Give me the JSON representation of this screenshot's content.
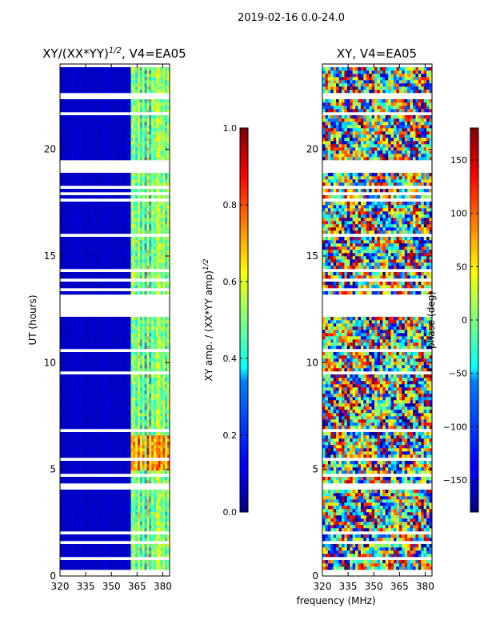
{
  "figure": {
    "suptitle": "2019-02-16 0.0-24.0",
    "shared_xlabel": "frequency (MHz)"
  },
  "chart_data": [
    {
      "type": "heatmap",
      "title": "XY/(XX*YY)^{1/2}, V4=EA05",
      "title_main": "XY/(XX*YY)",
      "title_sup": "1/2",
      "title_tail": ", V4=EA05",
      "xlabel": "frequency (MHz)",
      "ylabel": "UT (hours)",
      "xlim": [
        320,
        384
      ],
      "ylim": [
        0,
        24
      ],
      "xticks": [
        320,
        335,
        350,
        365,
        380
      ],
      "yticks": [
        0,
        5,
        10,
        15,
        20
      ],
      "colormap": "jet",
      "colorbar": {
        "label": "XY amp. / (XX*YY amp)^{1/2}",
        "label_main": "XY amp. / (XX*YY amp)",
        "label_sup": "1/2",
        "range": [
          0.0,
          1.0
        ],
        "ticks": [
          "0.0",
          "0.2",
          "0.4",
          "0.6",
          "0.8",
          "1.0"
        ]
      },
      "flagged_gaps_hours": [
        [
          12.2,
          13.2
        ],
        [
          18.9,
          19.4
        ]
      ],
      "description_values": "mostly ~0.05 below 361 MHz; ~0.3-0.6 in columns 361-380 MHz"
    },
    {
      "type": "heatmap",
      "title": "XY, V4=EA05",
      "xlabel": "frequency (MHz)",
      "ylabel": "",
      "xlim": [
        320,
        384
      ],
      "ylim": [
        0,
        24
      ],
      "xticks": [
        320,
        335,
        350,
        365,
        380
      ],
      "yticks": [
        0,
        5,
        10,
        15,
        20
      ],
      "colormap": "jet",
      "colorbar": {
        "label": "phase (deg)",
        "range": [
          -180,
          180
        ],
        "ticks": [
          "−150",
          "−100",
          "−50",
          "0",
          "50",
          "100",
          "150"
        ]
      },
      "flagged_gaps_hours": [
        [
          12.2,
          13.2
        ],
        [
          18.9,
          19.4
        ]
      ],
      "description_values": "phase spread across −180 to 180 deg"
    }
  ]
}
